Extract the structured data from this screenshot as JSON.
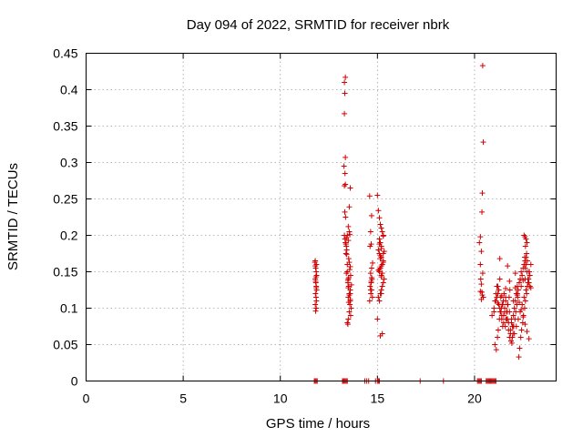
{
  "chart_data": {
    "type": "scatter",
    "title": "Day 094 of 2022, SRMTID for receiver nbrk",
    "xlabel": "GPS time / hours",
    "ylabel": "SRMTID / TECUs",
    "xlim": [
      0,
      24.2
    ],
    "ylim": [
      0,
      0.45
    ],
    "x_ticks": [
      "0",
      "5",
      "10",
      "15",
      "20"
    ],
    "y_ticks": [
      "0",
      "0.05",
      "0.1",
      "0.15",
      "0.2",
      "0.25",
      "0.3",
      "0.35",
      "0.4",
      "0.45"
    ],
    "grid": true,
    "marker": "plus",
    "color": "#d40000",
    "series": [
      {
        "name": "nbrk",
        "x": [
          11.78,
          11.8,
          11.82,
          11.85,
          11.87,
          11.8,
          11.83,
          11.85,
          11.87,
          11.81,
          11.84,
          11.86,
          11.8,
          11.85,
          11.82,
          11.86,
          11.8,
          11.83,
          11.85,
          11.82,
          13.3,
          13.35,
          13.32,
          13.3,
          13.35,
          13.28,
          13.33,
          13.35,
          13.3,
          13.32,
          13.36,
          13.3,
          13.33,
          13.35,
          13.4,
          13.42,
          13.38,
          13.45,
          13.4,
          13.5,
          13.55,
          13.45,
          13.5,
          13.48,
          13.52,
          13.6,
          13.55,
          13.5,
          13.6,
          13.58,
          13.65,
          13.55,
          13.62,
          13.5,
          13.45,
          13.48,
          13.55,
          13.6,
          13.52,
          13.42,
          13.38,
          13.6,
          13.55,
          13.5,
          13.58,
          13.45,
          13.62,
          13.66,
          13.5,
          13.55,
          13.6,
          13.48,
          13.52,
          13.4,
          13.57,
          13.6,
          13.52,
          14.6,
          14.7,
          14.65,
          14.68,
          14.62,
          14.75,
          14.7,
          14.65,
          14.72,
          14.68,
          14.62,
          14.7,
          14.66,
          14.74,
          14.6,
          14.7,
          14.68,
          14.65,
          15.0,
          15.05,
          15.1,
          15.15,
          15.2,
          15.25,
          15.3,
          15.1,
          15.15,
          15.2,
          15.05,
          15.1,
          15.2,
          15.3,
          15.25,
          15.15,
          15.1,
          15.2,
          15.35,
          15.3,
          15.25,
          15.2,
          15.15,
          15.05,
          15.1,
          15.2,
          15.3,
          15.15,
          15.25,
          15.2,
          15.1,
          15.3,
          15.0,
          15.25,
          15.15,
          15.2,
          15.35,
          15.3,
          15.1,
          15.2,
          15.15,
          15.05,
          20.25,
          20.3,
          20.32,
          20.35,
          20.3,
          20.4,
          20.35,
          20.42,
          20.45,
          20.4,
          20.38,
          20.35,
          20.42,
          20.3,
          20.45,
          20.38,
          20.9,
          21.0,
          21.05,
          21.1,
          21.15,
          21.2,
          21.25,
          21.3,
          21.35,
          21.4,
          21.45,
          21.5,
          21.55,
          21.6,
          21.65,
          21.7,
          21.75,
          21.8,
          21.85,
          21.9,
          21.95,
          22.0,
          22.05,
          22.1,
          22.15,
          22.2,
          22.25,
          22.3,
          22.35,
          22.4,
          22.45,
          22.5,
          22.55,
          22.6,
          22.65,
          22.7,
          22.75,
          22.8,
          22.85,
          22.9,
          21.05,
          21.12,
          21.18,
          21.22,
          21.28,
          21.32,
          21.38,
          21.42,
          21.48,
          21.52,
          21.58,
          21.62,
          21.68,
          21.72,
          21.78,
          21.82,
          21.88,
          21.92,
          21.98,
          22.02,
          22.08,
          22.12,
          22.18,
          22.22,
          22.28,
          22.32,
          22.38,
          22.42,
          22.48,
          22.52,
          22.58,
          22.62,
          22.68,
          22.72,
          22.78,
          22.82,
          21.1,
          21.2,
          21.3,
          21.4,
          21.5,
          21.6,
          21.7,
          21.8,
          21.9,
          22.0,
          22.1,
          22.2,
          22.3,
          22.4,
          22.5,
          22.6,
          22.7,
          22.8,
          21.15,
          21.25,
          21.35,
          21.45,
          21.55,
          21.65,
          21.75,
          21.85,
          21.95,
          22.05,
          22.15,
          22.25,
          22.35,
          22.45,
          22.55,
          22.65,
          22.75,
          22.85,
          21.0,
          21.2,
          21.4,
          21.6,
          21.8,
          22.0,
          22.2,
          22.4,
          22.6,
          22.8,
          21.3,
          21.7,
          22.1,
          22.5,
          22.9,
          22.55,
          22.6,
          22.65,
          22.7,
          22.62,
          22.68,
          22.58,
          22.72,
          22.66,
          22.6,
          11.75,
          11.8,
          11.85,
          11.9,
          13.2,
          13.25,
          13.3,
          13.35,
          13.4,
          13.45,
          14.35,
          14.45,
          14.55,
          14.9,
          15.0,
          15.05,
          15.1,
          17.2,
          18.4,
          20.15,
          20.2,
          20.25,
          20.3,
          20.35,
          20.6,
          20.65,
          20.7,
          20.75,
          20.8,
          20.85,
          20.9,
          20.95,
          21.0,
          21.05,
          21.1
        ],
        "y": [
          0.163,
          0.158,
          0.155,
          0.15,
          0.145,
          0.14,
          0.135,
          0.13,
          0.125,
          0.12,
          0.115,
          0.11,
          0.105,
          0.1,
          0.096,
          0.16,
          0.165,
          0.143,
          0.128,
          0.137,
          0.41,
          0.417,
          0.395,
          0.367,
          0.307,
          0.295,
          0.285,
          0.27,
          0.268,
          0.232,
          0.225,
          0.2,
          0.195,
          0.19,
          0.185,
          0.18,
          0.175,
          0.2,
          0.197,
          0.193,
          0.205,
          0.15,
          0.14,
          0.135,
          0.13,
          0.125,
          0.12,
          0.115,
          0.11,
          0.105,
          0.1,
          0.095,
          0.09,
          0.085,
          0.08,
          0.078,
          0.163,
          0.157,
          0.168,
          0.174,
          0.188,
          0.265,
          0.239,
          0.212,
          0.201,
          0.16,
          0.145,
          0.132,
          0.128,
          0.118,
          0.112,
          0.138,
          0.142,
          0.148,
          0.153,
          0.12,
          0.108,
          0.254,
          0.227,
          0.205,
          0.188,
          0.185,
          0.162,
          0.155,
          0.148,
          0.14,
          0.135,
          0.13,
          0.125,
          0.12,
          0.115,
          0.11,
          0.142,
          0.137,
          0.125,
          0.255,
          0.234,
          0.224,
          0.215,
          0.21,
          0.205,
          0.2,
          0.195,
          0.19,
          0.185,
          0.18,
          0.175,
          0.17,
          0.165,
          0.16,
          0.155,
          0.15,
          0.145,
          0.14,
          0.135,
          0.13,
          0.125,
          0.12,
          0.115,
          0.11,
          0.158,
          0.163,
          0.168,
          0.148,
          0.143,
          0.153,
          0.175,
          0.085,
          0.065,
          0.062,
          0.12,
          0.178,
          0.199,
          0.188,
          0.182,
          0.172,
          0.152,
          0.19,
          0.16,
          0.14,
          0.133,
          0.123,
          0.118,
          0.112,
          0.433,
          0.328,
          0.258,
          0.232,
          0.178,
          0.148,
          0.198,
          0.115,
          0.122,
          0.09,
          0.1,
          0.11,
          0.12,
          0.115,
          0.13,
          0.105,
          0.14,
          0.095,
          0.085,
          0.075,
          0.09,
          0.1,
          0.11,
          0.095,
          0.085,
          0.07,
          0.06,
          0.065,
          0.08,
          0.075,
          0.09,
          0.1,
          0.11,
          0.12,
          0.13,
          0.125,
          0.135,
          0.14,
          0.15,
          0.145,
          0.155,
          0.16,
          0.165,
          0.17,
          0.15,
          0.14,
          0.135,
          0.13,
          0.16,
          0.05,
          0.043,
          0.06,
          0.07,
          0.085,
          0.095,
          0.1,
          0.105,
          0.11,
          0.12,
          0.075,
          0.085,
          0.095,
          0.105,
          0.115,
          0.125,
          0.055,
          0.052,
          0.065,
          0.075,
          0.085,
          0.095,
          0.105,
          0.115,
          0.033,
          0.045,
          0.06,
          0.07,
          0.08,
          0.09,
          0.1,
          0.11,
          0.12,
          0.13,
          0.14,
          0.15,
          0.11,
          0.12,
          0.1,
          0.09,
          0.08,
          0.115,
          0.105,
          0.095,
          0.085,
          0.075,
          0.128,
          0.118,
          0.108,
          0.098,
          0.088,
          0.078,
          0.068,
          0.058,
          0.13,
          0.125,
          0.115,
          0.105,
          0.095,
          0.085,
          0.08,
          0.07,
          0.06,
          0.065,
          0.075,
          0.085,
          0.095,
          0.105,
          0.115,
          0.125,
          0.135,
          0.145,
          0.095,
          0.107,
          0.117,
          0.127,
          0.137,
          0.11,
          0.12,
          0.13,
          0.14,
          0.15,
          0.168,
          0.158,
          0.148,
          0.138,
          0.128,
          0.2,
          0.198,
          0.195,
          0.19,
          0.185,
          0.175,
          0.17,
          0.165,
          0.16,
          0.155,
          0,
          0,
          0,
          0,
          0,
          0,
          0,
          0,
          0,
          0,
          0,
          0,
          0,
          0,
          0,
          0,
          0,
          0,
          0,
          0,
          0,
          0,
          0,
          0,
          0,
          0,
          0,
          0,
          0,
          0,
          0,
          0,
          0,
          0,
          0
        ]
      }
    ]
  }
}
